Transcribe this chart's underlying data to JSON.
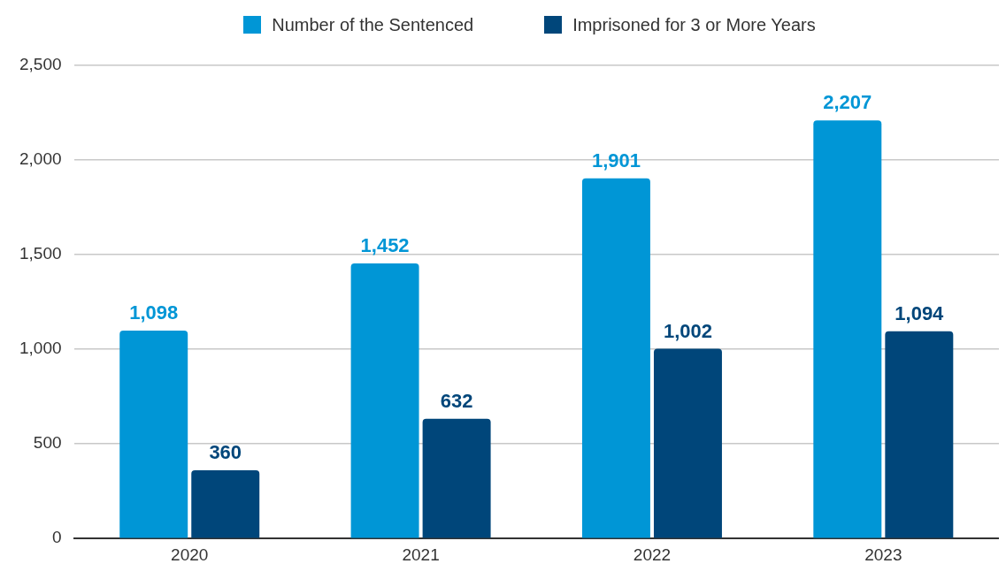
{
  "chart_data": {
    "type": "bar",
    "categories": [
      "2020",
      "2021",
      "2022",
      "2023"
    ],
    "series": [
      {
        "name": "Number of the Sentenced",
        "color": "#0096d6",
        "values": [
          1098,
          1452,
          1901,
          2207
        ],
        "value_labels": [
          "1,098",
          "1,452",
          "1,901",
          "2,207"
        ]
      },
      {
        "name": "Imprisoned for 3 or More Years",
        "color": "#00467a",
        "values": [
          360,
          632,
          1002,
          1094
        ],
        "value_labels": [
          "360",
          "632",
          "1,002",
          "1,094"
        ]
      }
    ],
    "ylim": [
      0,
      2500
    ],
    "yticks": [
      0,
      500,
      {
        "value": 1000,
        "label": "1,000"
      },
      {
        "value": 1500,
        "label": "1,500"
      },
      {
        "value": 2000,
        "label": "2,000"
      },
      {
        "value": 2500,
        "label": "2,500"
      }
    ],
    "grid": "y",
    "legend": "top"
  }
}
